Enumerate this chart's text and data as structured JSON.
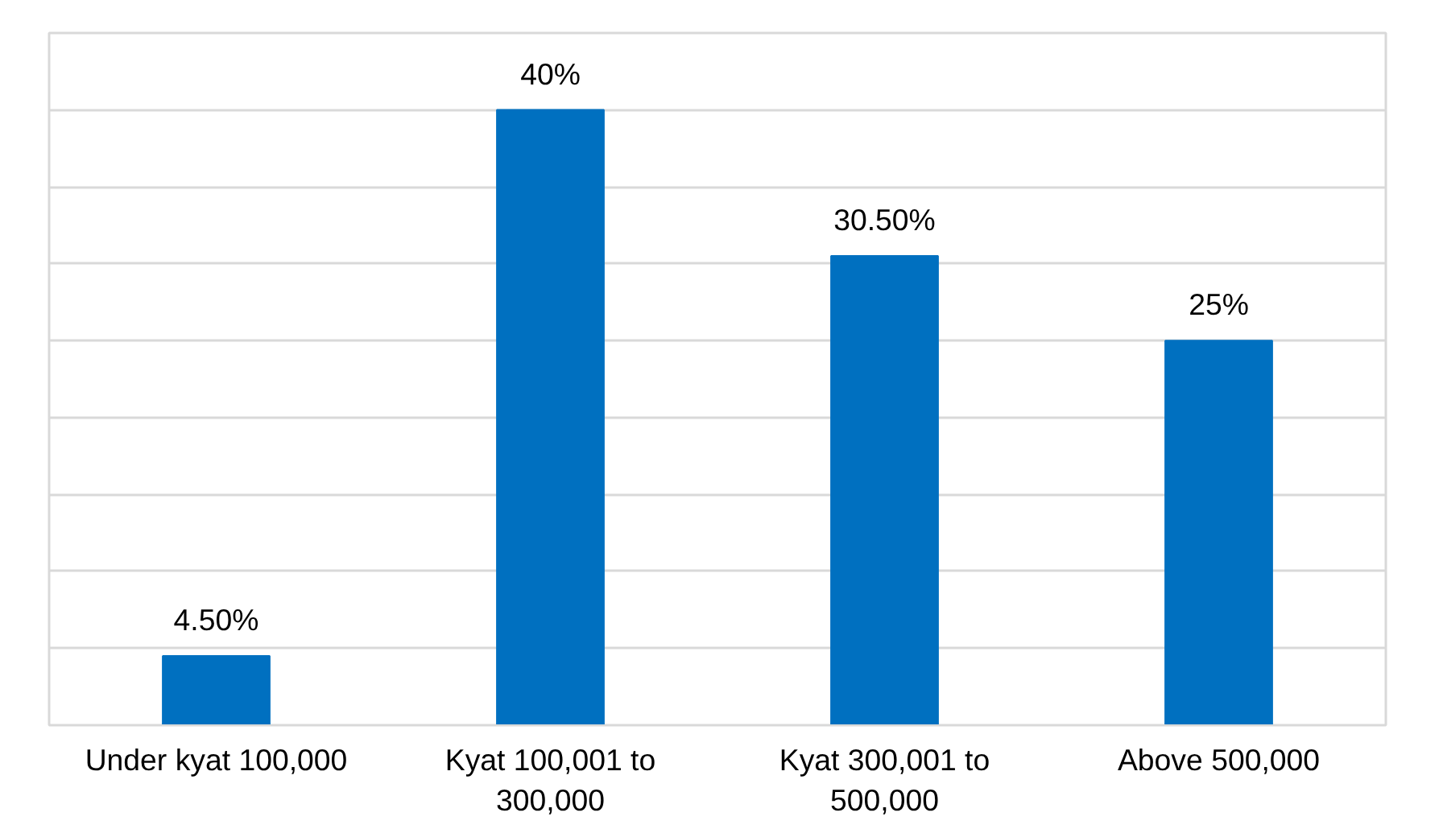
{
  "chart_data": {
    "type": "bar",
    "categories": [
      "Under kyat 100,000",
      "Kyat 100,001 to 300,000",
      "Kyat 300,001 to 500,000",
      "Above 500,000"
    ],
    "values": [
      4.5,
      40,
      30.5,
      25
    ],
    "value_labels": [
      "4.50%",
      "40%",
      "30.50%",
      "25%"
    ],
    "color": "#0070c0",
    "ylim": [
      0,
      45
    ],
    "yticks": [
      {
        "value": 0,
        "label": null
      },
      {
        "value": 5,
        "label": null
      },
      {
        "value": 10,
        "label": null
      },
      {
        "value": 15,
        "label": null
      },
      {
        "value": 20,
        "label": null
      },
      {
        "value": 25,
        "label": null
      },
      {
        "value": 30,
        "label": null
      },
      {
        "value": 35,
        "label": null
      },
      {
        "value": 40,
        "label": null
      },
      {
        "value": 45,
        "label": null
      }
    ],
    "grid": "y",
    "tick_labels": "x"
  }
}
